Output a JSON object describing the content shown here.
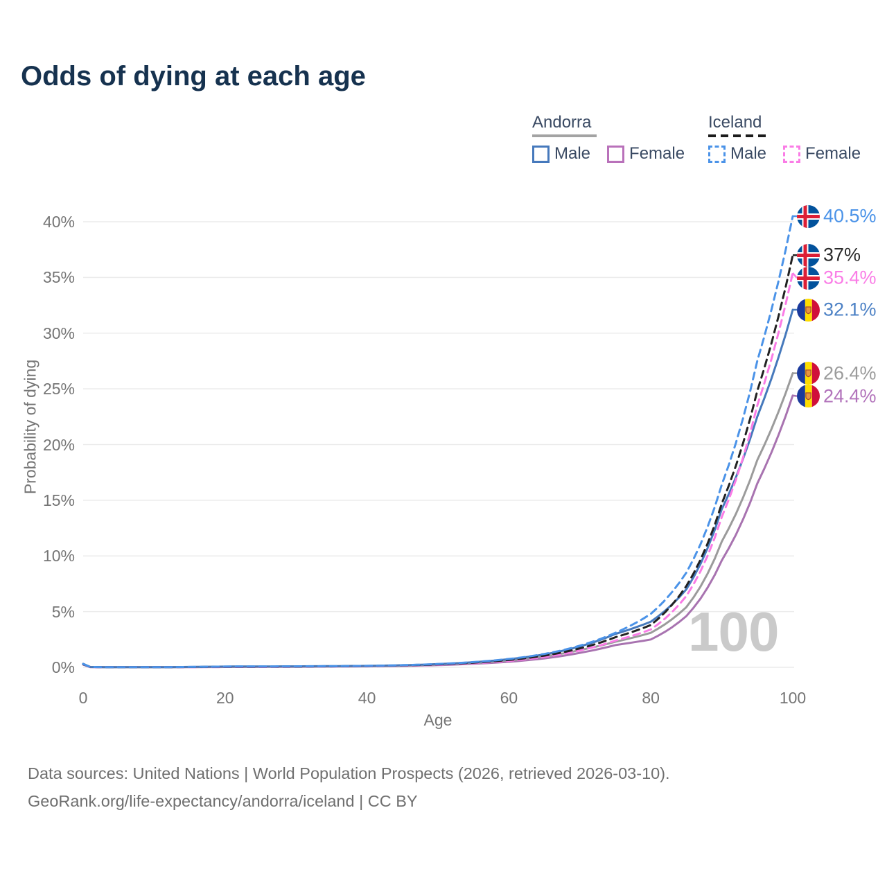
{
  "title": "Odds of dying at each age",
  "legend": {
    "groups": [
      {
        "name": "Andorra",
        "line_style": "solid",
        "header_line_color": "#a3a3a3",
        "items": [
          {
            "label": "Male",
            "color": "#4679bc"
          },
          {
            "label": "Female",
            "color": "#b971ba"
          }
        ]
      },
      {
        "name": "Iceland",
        "line_style": "dashed",
        "header_line_color": "#1c1c1c",
        "items": [
          {
            "label": "Male",
            "color": "#4b93e8"
          },
          {
            "label": "Female",
            "color": "#fa7ce6"
          }
        ]
      }
    ]
  },
  "chart_data": {
    "type": "line",
    "title": "Odds of dying at each age",
    "xlabel": "Age",
    "ylabel": "Probability of dying",
    "xlim": [
      0,
      100
    ],
    "ylim_pct": [
      0,
      40
    ],
    "x_ticks": [
      0,
      20,
      40,
      60,
      80,
      100
    ],
    "y_ticks": [
      "0%",
      "5%",
      "10%",
      "15%",
      "20%",
      "25%",
      "30%",
      "35%",
      "40%"
    ],
    "grid": "horizontal",
    "legend_position": "top-right",
    "watermark": "100",
    "x": [
      0,
      1,
      5,
      10,
      15,
      20,
      25,
      30,
      35,
      40,
      45,
      50,
      55,
      60,
      65,
      70,
      75,
      80,
      85,
      90,
      95,
      100
    ],
    "series": [
      {
        "id": "andorra-female",
        "name": "Andorra Female",
        "country": "andorra",
        "flag": "andorra",
        "color": "#a873b0",
        "dashed": false,
        "end_label": "24.4%",
        "label_color": "#b273bb",
        "values_pct": [
          0.26,
          0.02,
          0.01,
          0.01,
          0.02,
          0.03,
          0.04,
          0.05,
          0.07,
          0.09,
          0.13,
          0.2,
          0.32,
          0.5,
          0.8,
          1.3,
          2.0,
          2.5,
          4.6,
          9.6,
          16.5,
          24.4
        ]
      },
      {
        "id": "andorra-both",
        "name": "Andorra Both sexes",
        "country": "andorra",
        "flag": "andorra",
        "color": "#9b9b9b",
        "dashed": false,
        "end_label": "26.4%",
        "label_color": "#9b9b9b",
        "values_pct": [
          0.29,
          0.03,
          0.01,
          0.01,
          0.03,
          0.05,
          0.06,
          0.07,
          0.09,
          0.11,
          0.16,
          0.25,
          0.39,
          0.62,
          0.98,
          1.55,
          2.3,
          3.1,
          5.4,
          11.3,
          18.6,
          26.4
        ]
      },
      {
        "id": "andorra-male",
        "name": "Andorra Male",
        "country": "andorra",
        "flag": "andorra",
        "color": "#4679bc",
        "dashed": false,
        "end_label": "32.1%",
        "label_color": "#4c81c5",
        "values_pct": [
          0.32,
          0.03,
          0.01,
          0.01,
          0.04,
          0.07,
          0.08,
          0.09,
          0.11,
          0.13,
          0.19,
          0.29,
          0.46,
          0.73,
          1.16,
          1.88,
          3.0,
          4.1,
          7.0,
          14.2,
          22.5,
          32.1
        ]
      },
      {
        "id": "iceland-female",
        "name": "Iceland Female",
        "country": "iceland",
        "flag": "iceland",
        "color": "#fa7ce6",
        "dashed": true,
        "end_label": "35.4%",
        "label_color": "#fa7ce6",
        "values_pct": [
          0.25,
          0.02,
          0.01,
          0.01,
          0.02,
          0.03,
          0.04,
          0.06,
          0.08,
          0.1,
          0.15,
          0.23,
          0.37,
          0.58,
          0.93,
          1.52,
          2.4,
          3.4,
          6.4,
          13.5,
          23.5,
          35.4
        ]
      },
      {
        "id": "iceland-both",
        "name": "Iceland Both sexes",
        "country": "iceland",
        "flag": "iceland",
        "color": "#222222",
        "dashed": true,
        "end_label": "37%",
        "label_color": "#2b2b2b",
        "values_pct": [
          0.27,
          0.03,
          0.01,
          0.01,
          0.03,
          0.05,
          0.06,
          0.07,
          0.09,
          0.12,
          0.17,
          0.26,
          0.42,
          0.66,
          1.05,
          1.7,
          2.7,
          3.8,
          7.3,
          14.7,
          24.8,
          37.0
        ]
      },
      {
        "id": "iceland-male",
        "name": "Iceland Male",
        "country": "iceland",
        "flag": "iceland",
        "color": "#4b93e8",
        "dashed": true,
        "end_label": "40.5%",
        "label_color": "#4b93e8",
        "values_pct": [
          0.3,
          0.03,
          0.01,
          0.01,
          0.04,
          0.07,
          0.08,
          0.09,
          0.1,
          0.13,
          0.19,
          0.3,
          0.47,
          0.75,
          1.2,
          1.95,
          3.1,
          4.8,
          8.5,
          16.4,
          27.5,
          40.5
        ]
      }
    ]
  },
  "footer": {
    "line1": "Data sources: United Nations | World Population Prospects (2026, retrieved 2026-03-10).",
    "line2": "GeoRank.org/life-expectancy/andorra/iceland | CC BY"
  }
}
